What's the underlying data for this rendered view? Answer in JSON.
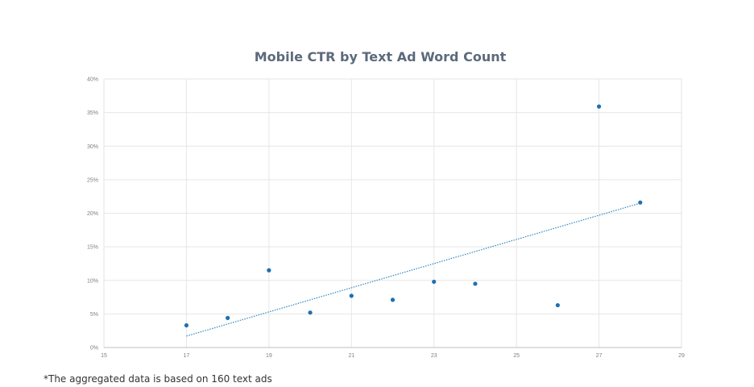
{
  "chart_data": {
    "type": "scatter",
    "title": "Mobile CTR by Text Ad Word Count",
    "xlabel": "",
    "ylabel": "",
    "xlim": [
      15,
      29
    ],
    "ylim": [
      0,
      0.4
    ],
    "x_ticks": [
      15,
      17,
      19,
      21,
      23,
      25,
      27,
      29
    ],
    "x_tick_labels": [
      "15",
      "17",
      "19",
      "21",
      "23",
      "25",
      "27",
      "29"
    ],
    "y_ticks": [
      0,
      0.05,
      0.1,
      0.15,
      0.2,
      0.25,
      0.3,
      0.35,
      0.4
    ],
    "y_tick_labels": [
      "0%",
      "5%",
      "10%",
      "15%",
      "20%",
      "25%",
      "30%",
      "35%",
      "40%"
    ],
    "grid": true,
    "legend": "none",
    "point_color": "#1f6fb2",
    "trendline_color": "#2e86c1",
    "series": [
      {
        "points": [
          {
            "x": 17,
            "y": 0.033
          },
          {
            "x": 18,
            "y": 0.044
          },
          {
            "x": 19,
            "y": 0.115
          },
          {
            "x": 20,
            "y": 0.052
          },
          {
            "x": 21,
            "y": 0.077
          },
          {
            "x": 22,
            "y": 0.071
          },
          {
            "x": 23,
            "y": 0.098
          },
          {
            "x": 24,
            "y": 0.095
          },
          {
            "x": 26,
            "y": 0.063
          },
          {
            "x": 27,
            "y": 0.359
          },
          {
            "x": 28,
            "y": 0.216
          }
        ]
      }
    ],
    "trendline": {
      "type": "linear",
      "x_start": 17,
      "x_end": 28,
      "y_start": 0.017,
      "y_end": 0.215
    }
  },
  "footnote": "*The aggregated data is based on 160 text ads"
}
